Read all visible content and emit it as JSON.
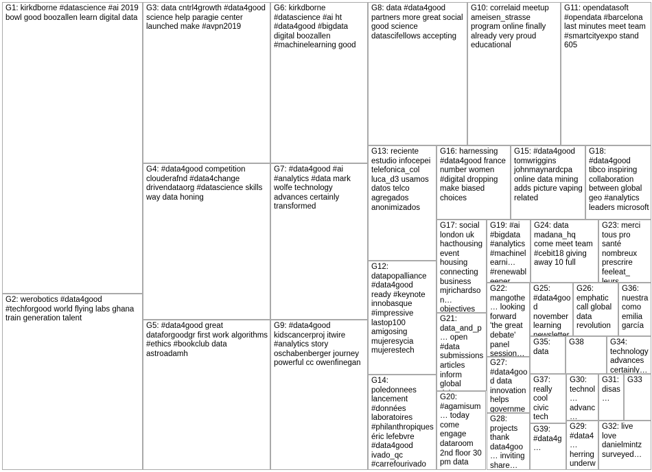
{
  "colors": {
    "edge_intra": "#c8c8c8",
    "edge_cross": "#f06464",
    "border": "#a9a9a9"
  },
  "groups": [
    {
      "id": "g1",
      "label": "G1: kirkdborne #datascience #ai 2019 bowl good boozallen learn digital data",
      "node_color": "#1a2a6c"
    },
    {
      "id": "g2",
      "label": "G2: werobotics #data4good #techforgood world flying labs ghana train generation talent",
      "node_color": "#1f77b4"
    },
    {
      "id": "g3",
      "label": "G3: data cntrl4growth #data4good science help paragie center launched make #avpn2019",
      "node_color": "#2ca02c"
    },
    {
      "id": "g4",
      "label": "G4: #data4good competition clouderafnd #data4change drivendataorg #datascience skills way data honing",
      "node_color": "#2ca02c"
    },
    {
      "id": "g5",
      "label": "G5: #data4good great dataforgoodgr first work algorithms #ethics #bookclub data astroadamh",
      "node_color": "#c4164c"
    },
    {
      "id": "g6",
      "label": "G6: kirkdborne #datascience #ai ht #data4good #bigdata digital boozallen #machinelearning good",
      "node_color": "#b8860b"
    },
    {
      "id": "g7",
      "label": "G7: #data4good #ai #analytics #data mark wolfe technology advances certainly transformed",
      "node_color": "#e6a800"
    },
    {
      "id": "g8",
      "label": "G8: data #data4good partners more great social good science datascifellows accepting",
      "node_color": "#9acd32"
    },
    {
      "id": "g9",
      "label": "G9: #data4good kidscancerproj itwire #analytics story oschabenberger journey powerful cc owenfinegan",
      "node_color": "#c71585"
    },
    {
      "id": "g10",
      "label": "G10: correlaid meetup ameisen_strasse program online finally already very proud educational",
      "node_color": "#6a0dad"
    },
    {
      "id": "g11",
      "label": "G11: opendatasoft #opendata #barcelona last minutes meet team #smartcityexpo stand 605",
      "node_color": "#9400d3"
    },
    {
      "id": "g12",
      "label": "G12: datapopalliance #data4good ready #keynote innobasque #impressive lastop100 amigosing mujeresycia mujerestech",
      "node_color": "#1e90ff"
    },
    {
      "id": "g13",
      "label": "G13: reciente estudio infocepei telefonica_col luca_d3 usamos datos telco agregados anonimizados",
      "node_color": "#2e8b57"
    },
    {
      "id": "g14",
      "label": "G14: poledonnees lancement #données laboratoires #philanthropiques éric lefebvre #data4good ivado_qc #carrefourivado",
      "node_color": "#c71585"
    },
    {
      "id": "g15",
      "label": "G15: #data4good tomwriggins johnmaynardcpa online data mining adds picture vaping related",
      "node_color": "#9acd32"
    },
    {
      "id": "g16",
      "label": "G16: harnessing #data4good france number women #digital dropping make biased choices",
      "node_color": "#9acd32"
    },
    {
      "id": "g17",
      "label": "G17: social london uk hacthousing event housing connecting business mjrichardson… objectives",
      "node_color": "#2e8b57"
    },
    {
      "id": "g18",
      "label": "G18: #data4good tibco inspiring collaboration between global geo #analytics leaders microsoft",
      "node_color": "#6a0dad"
    },
    {
      "id": "g19",
      "label": "G19: #ai #bigdata #analytics #machinelearni… #renewableener… sector #iot #iiot daverubal #dro",
      "node_color": "#e6a800"
    },
    {
      "id": "g20",
      "label": "G20: #agamisum… today come engage dataroom 2nd floor 30 pm data",
      "node_color": "#2e8b57"
    },
    {
      "id": "g21",
      "label": "G21: data_and_p… open #data submissions articles inform global debate #data4good carlos_santi…",
      "node_color": "#2e8b57"
    },
    {
      "id": "g22",
      "label": "G22: mangothe… looking forward 'the great debate' panel session…",
      "node_color": "#2e8b57"
    },
    {
      "id": "g23",
      "label": "G23: merci tous pro santé nombreux prescrire feeleat_ leurs patients…",
      "node_color": "#9400d3"
    },
    {
      "id": "g24",
      "label": "G24: data madana_hq come meet team #cebit18 giving away 10 full",
      "node_color": "#2e8b57"
    },
    {
      "id": "g25",
      "label": "G25: #data4good november learning newsletter…",
      "node_color": "#9400d3"
    },
    {
      "id": "g26",
      "label": "G26: emphatic call global data revolution…",
      "node_color": "#2e8b57"
    },
    {
      "id": "g27",
      "label": "G27: #data4good data innovation helps governme…",
      "node_color": "#2e8b57"
    },
    {
      "id": "g28",
      "label": "G28: projects thank data4goo… inviting share…",
      "node_color": "#2e8b57"
    },
    {
      "id": "g29",
      "label": "G29: #data4… herring underw… #iot…",
      "node_color": "#9400d3"
    },
    {
      "id": "g30",
      "label": "G30: technol… advanc… certainly transfor…",
      "node_color": "#2e8b57"
    },
    {
      "id": "g31",
      "label": "G31: disas…",
      "node_color": "#e6a800"
    },
    {
      "id": "g32",
      "label": "G32: live love danielmintz surveyed…",
      "node_color": "#9400d3"
    },
    {
      "id": "g33",
      "label": "G33",
      "node_color": "#e6a800"
    },
    {
      "id": "g34",
      "label": "G34: technology advances certainly…",
      "node_color": "#9400d3"
    },
    {
      "id": "g35",
      "label": "G35: data",
      "node_color": "#9400d3"
    },
    {
      "id": "g36",
      "label": "G36: nuestra como emilia garcía…",
      "node_color": "#2e8b57"
    },
    {
      "id": "g37",
      "label": "G37: really cool civic tech project…",
      "node_color": "#9acd32"
    },
    {
      "id": "g38",
      "label": "G38",
      "node_color": "#2e8b57"
    },
    {
      "id": "g39",
      "label": "G39: #data4g…",
      "node_color": "#2e8b57"
    }
  ]
}
